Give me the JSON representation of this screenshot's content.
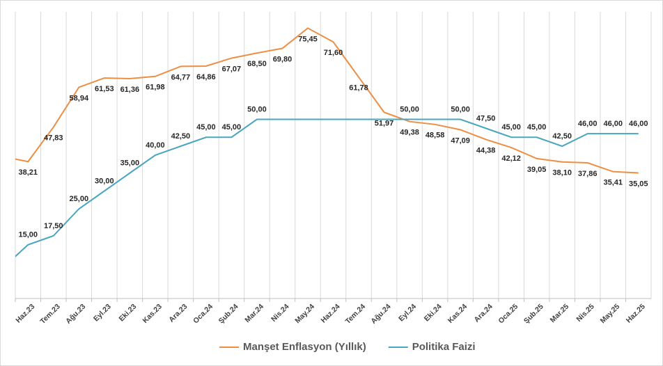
{
  "chart_data": {
    "type": "line",
    "categories": [
      null,
      "Haz.23",
      "Tem.23",
      "Ağu.23",
      "Eyl.23",
      "Eki.23",
      "Kas.23",
      "Ara.23",
      "Oca.24",
      "Şub.24",
      "Mar.24",
      "Nis.24",
      "May.24",
      "Haz.24",
      "Tem.24",
      "Ağu.24",
      "Eyl.24",
      "Eki.24",
      "Kas.24",
      "Ara.24",
      "Oca.25",
      "Şub.25",
      "Mar.25",
      "Nis.25",
      "May.25",
      "Haz.25"
    ],
    "series": [
      {
        "name": "Manşet Enflasyon (Yıllık)",
        "color": "#ed8e45",
        "values": [
          39.59,
          38.21,
          47.83,
          58.94,
          61.53,
          61.36,
          61.98,
          64.77,
          64.86,
          67.07,
          68.5,
          69.8,
          75.45,
          71.6,
          61.78,
          51.97,
          49.38,
          48.58,
          47.09,
          44.38,
          42.12,
          39.05,
          38.1,
          37.86,
          35.41,
          35.05
        ],
        "value_labels": [
          null,
          "38,21",
          "47,83",
          "58,94",
          "61,53",
          "61,36",
          "61,98",
          "64,77",
          "64,86",
          "67,07",
          "68,50",
          "69,80",
          "75,45",
          "71,60",
          "61,78",
          "51,97",
          "49,38",
          "48,58",
          "47,09",
          "44,38",
          "42,12",
          "39,05",
          "38,10",
          "37,86",
          "35,41",
          "35,05"
        ]
      },
      {
        "name": "Politika Faizi",
        "color": "#4aa5bf",
        "values": [
          8.5,
          15.0,
          17.5,
          25.0,
          30.0,
          35.0,
          40.0,
          42.5,
          45.0,
          45.0,
          50.0,
          50.0,
          50.0,
          50.0,
          50.0,
          50.0,
          50.0,
          50.0,
          50.0,
          47.5,
          45.0,
          45.0,
          42.5,
          46.0,
          46.0,
          46.0
        ],
        "value_labels": [
          null,
          "15,00",
          "17,50",
          "25,00",
          "30,00",
          "35,00",
          "40,00",
          "42,50",
          "45,00",
          "45,00",
          "50,00",
          null,
          null,
          null,
          null,
          null,
          "50,00",
          null,
          "50,00",
          "47,50",
          "45,00",
          "45,00",
          "42,50",
          "46,00",
          "46,00",
          "46,00"
        ]
      }
    ],
    "ylim": [
      0,
      80
    ],
    "grid": true,
    "legend": "bottom"
  }
}
